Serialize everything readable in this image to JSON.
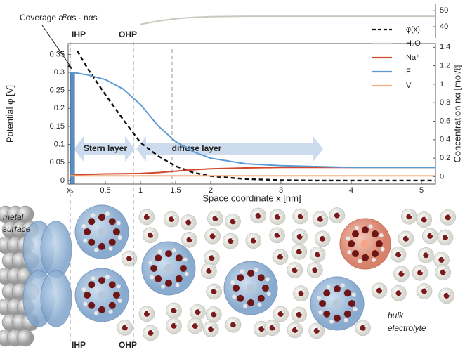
{
  "chart_data": {
    "type": "line",
    "x_label": "Space coordinate x [nm]",
    "y_label": "Potential φ [V]",
    "y2_label": "Concentration nα [mol/ℓ]",
    "x": [
      0,
      0.1,
      0.25,
      0.5,
      0.75,
      1,
      1.25,
      1.5,
      1.75,
      2,
      2.5,
      3,
      3.5,
      4,
      4.5,
      5,
      5.2
    ],
    "series": [
      {
        "name": "φ(x)",
        "color": "#111111",
        "dashed": true,
        "axis": "y",
        "values": [
          null,
          0.36,
          0.31,
          0.238,
          0.17,
          0.105,
          0.068,
          0.04,
          0.022,
          0.012,
          0.004,
          0.001,
          0,
          0,
          0,
          0,
          0
        ]
      },
      {
        "name": "H₂O",
        "color": "#c9c9c0",
        "axis": "y3",
        "values": [
          null,
          null,
          null,
          null,
          null,
          41.5,
          43.5,
          45,
          45.8,
          46.2,
          46.5,
          46.5,
          46.5,
          46.5,
          46.5,
          46.5,
          46.5
        ]
      },
      {
        "name": "Na⁺",
        "color": "#d0492a",
        "axis": "y2",
        "values": [
          0.01,
          0.02,
          0.025,
          0.03,
          0.032,
          0.035,
          0.045,
          0.06,
          0.075,
          0.085,
          0.095,
          0.1,
          0.1,
          0.1,
          0.1,
          0.1,
          0.1
        ]
      },
      {
        "name": "F⁻",
        "color": "#5b9bd5",
        "axis": "y2",
        "values": [
          1.13,
          1.12,
          1.1,
          1.05,
          0.95,
          0.78,
          0.55,
          0.38,
          0.27,
          0.2,
          0.14,
          0.12,
          0.11,
          0.1,
          0.1,
          0.1,
          0.1
        ]
      },
      {
        "name": "V",
        "color": "#f0b080",
        "axis": "y2",
        "values": [
          0.01,
          0.01,
          0.01,
          0.01,
          0.01,
          0.01,
          0.01,
          0.01,
          0.01,
          0.01,
          0.01,
          0.01,
          0.01,
          0.01,
          0.01,
          0.01,
          0.01
        ]
      }
    ],
    "xlim": [
      -0.03,
      5.2
    ],
    "xticks": [
      {
        "value": 0,
        "label": "xₛ"
      },
      0.5,
      1,
      1.5,
      2,
      3,
      4,
      5
    ],
    "ylim": [
      -0.01,
      0.38
    ],
    "yticks": [
      0,
      0.05,
      0.1,
      0.15,
      0.2,
      0.25,
      0.3,
      0.35
    ],
    "y2lim": [
      -0.08,
      1.44
    ],
    "y2ticks": [
      0,
      0.2,
      0.4,
      0.6,
      0.8,
      1,
      1.2,
      1.4
    ],
    "y3lim": [
      33,
      54
    ],
    "y3ticks": [
      40,
      50
    ],
    "legend": "upper right",
    "coverage": {
      "label": "Coverage aᴿαs · nαs",
      "value": 1.13,
      "color": "#5b8fc4"
    },
    "reference_lines": [
      {
        "x": 0,
        "label": "IHP"
      },
      {
        "x": 0.9,
        "label": "OHP"
      },
      {
        "x": 1.45
      }
    ],
    "regions": [
      "Stern layer",
      "diffuse layer"
    ]
  },
  "illustration": {
    "metal_surface": [
      "metal",
      "surface"
    ],
    "bulk_electrolyte": [
      "bulk",
      "electrolyte"
    ],
    "planes": [
      "IHP",
      "OHP"
    ]
  }
}
